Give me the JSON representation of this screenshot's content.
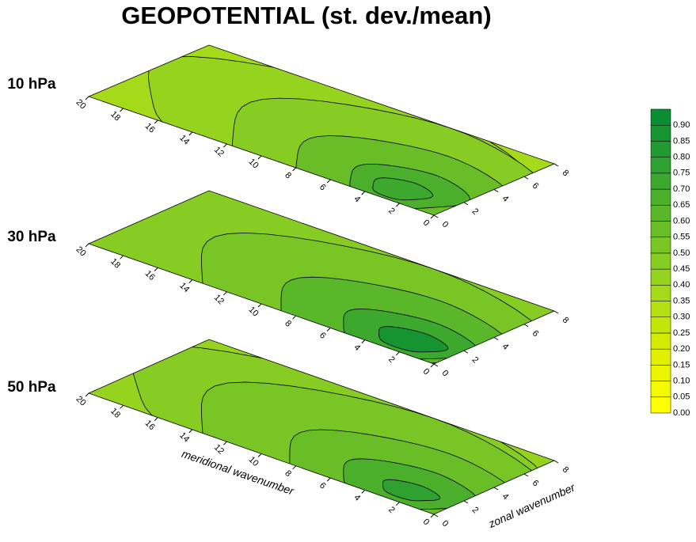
{
  "chart_data": {
    "type": "contour",
    "title": "GEOPOTENTIAL (st. dev./mean)",
    "panels": [
      {
        "label": "10 hPa"
      },
      {
        "label": "30 hPa"
      },
      {
        "label": "50 hPa"
      }
    ],
    "xlabel": "meridional wavenumber",
    "ylabel": "zonal wavenumber",
    "xlim": [
      0,
      20
    ],
    "xticks": [
      0,
      2,
      4,
      6,
      8,
      10,
      12,
      14,
      16,
      18,
      20
    ],
    "ylim": [
      0,
      8
    ],
    "yticks": [
      0,
      2,
      4,
      6,
      8
    ],
    "cticks": [
      {
        "value": 0,
        "label": "0.00"
      },
      {
        "value": 0.05,
        "label": "0.05"
      },
      {
        "value": 0.1,
        "label": "0.10"
      },
      {
        "value": 0.15,
        "label": "0.15"
      },
      {
        "value": 0.2,
        "label": "0.20"
      },
      {
        "value": 0.25,
        "label": "0.25"
      },
      {
        "value": 0.3,
        "label": "0.30"
      },
      {
        "value": 0.35,
        "label": "0.35"
      },
      {
        "value": 0.4,
        "label": "0.40"
      },
      {
        "value": 0.45,
        "label": "0.45"
      },
      {
        "value": 0.5,
        "label": "0.50"
      },
      {
        "value": 0.55,
        "label": "0.55"
      },
      {
        "value": 0.6,
        "label": "0.60"
      },
      {
        "value": 0.65,
        "label": "0.65"
      },
      {
        "value": 0.7,
        "label": "0.70"
      },
      {
        "value": 0.75,
        "label": "0.75"
      },
      {
        "value": 0.8,
        "label": "0.80"
      },
      {
        "value": 0.85,
        "label": "0.85"
      },
      {
        "value": 0.9,
        "label": "0.90"
      }
    ],
    "colors": [
      "#ffff00",
      "#f5fa00",
      "#ebf500",
      "#e0f000",
      "#d2eb00",
      "#c3e60a",
      "#b4e014",
      "#a5da1a",
      "#96d31e",
      "#87cc22",
      "#78c525",
      "#69be28",
      "#5ab72a",
      "#4baf2c",
      "#3da82e",
      "#2fa130",
      "#229a31",
      "#169432",
      "#0a8d33"
    ]
  }
}
